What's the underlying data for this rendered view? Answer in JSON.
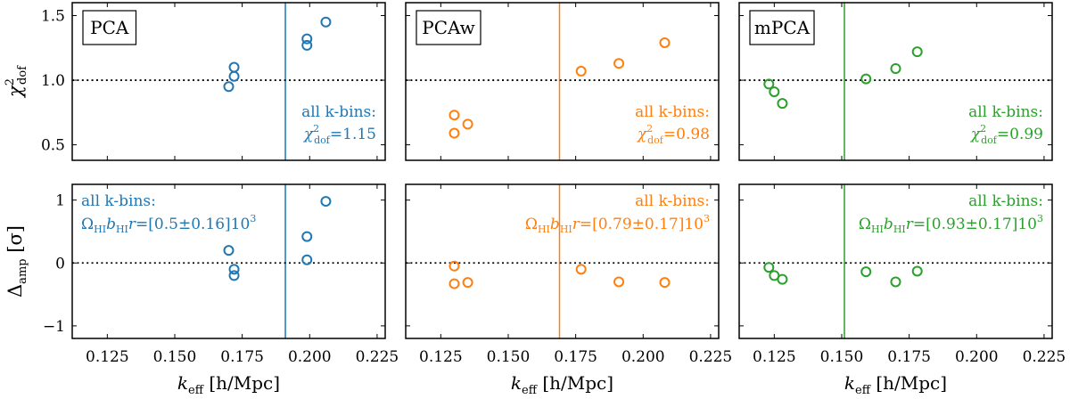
{
  "chart_data": {
    "type": "scatter",
    "layout": "2x3 panel grid",
    "xlabel": {
      "main": "k",
      "sub": "eff",
      "unit": " [h/Mpc]"
    },
    "ylabels": {
      "top": {
        "main": "χ",
        "sup": "2",
        "sub": "dof"
      },
      "bottom": {
        "main": "Δ",
        "sub": "amp",
        "unit": " [σ]"
      }
    },
    "xlim": [
      0.112,
      0.228
    ],
    "xticks": [
      0.125,
      0.15,
      0.175,
      0.2,
      0.225
    ],
    "xtick_labels": [
      "0.125",
      "0.150",
      "0.175",
      "0.200",
      "0.225"
    ],
    "ylim_top": [
      0.38,
      1.6
    ],
    "yticks_top": [
      0.5,
      1.0,
      1.5
    ],
    "ytick_labels_top": [
      "0.5",
      "1.0",
      "1.5"
    ],
    "ylim_bottom": [
      -1.2,
      1.25
    ],
    "yticks_bottom": [
      -1,
      0,
      1
    ],
    "ytick_labels_bottom": [
      "−1",
      "0",
      "1"
    ],
    "reference_line_top": 1.0,
    "reference_line_bottom": 0.0,
    "panels": [
      {
        "name": "PCA",
        "color": "#1f77b4",
        "kcut": 0.191,
        "k": [
          0.17,
          0.172,
          0.172,
          0.199,
          0.199,
          0.206
        ],
        "chi2": [
          0.95,
          1.03,
          1.1,
          1.27,
          1.32,
          1.45
        ],
        "damp": [
          0.2,
          -0.1,
          -0.2,
          0.05,
          0.42,
          0.98
        ],
        "chi2_label": "all k-bins:",
        "chi2_value": "=1.15",
        "amp_label": "all k-bins:",
        "amp_value": "=[0.5±0.16]10",
        "amp_exponent": "3"
      },
      {
        "name": "PCAw",
        "color": "#ff7f0e",
        "kcut": 0.169,
        "k": [
          0.13,
          0.13,
          0.135,
          0.177,
          0.191,
          0.208
        ],
        "chi2": [
          0.73,
          0.59,
          0.66,
          1.07,
          1.13,
          1.29
        ],
        "damp": [
          -0.05,
          -0.33,
          -0.31,
          -0.1,
          -0.3,
          -0.31
        ],
        "chi2_label": "all k-bins:",
        "chi2_value": "=0.98",
        "amp_label": "all k-bins:",
        "amp_value": "=[0.79±0.17]10",
        "amp_exponent": "3"
      },
      {
        "name": "mPCA",
        "color": "#2ca02c",
        "kcut": 0.151,
        "k": [
          0.123,
          0.125,
          0.128,
          0.159,
          0.17,
          0.178
        ],
        "chi2": [
          0.97,
          0.91,
          0.82,
          1.01,
          1.09,
          1.22
        ],
        "damp": [
          -0.07,
          -0.2,
          -0.26,
          -0.14,
          -0.3,
          -0.13
        ],
        "chi2_label": "all k-bins:",
        "chi2_value": "=0.99",
        "amp_label": "all k-bins:",
        "amp_value": "=[0.93±0.17]10",
        "amp_exponent": "3"
      }
    ]
  }
}
